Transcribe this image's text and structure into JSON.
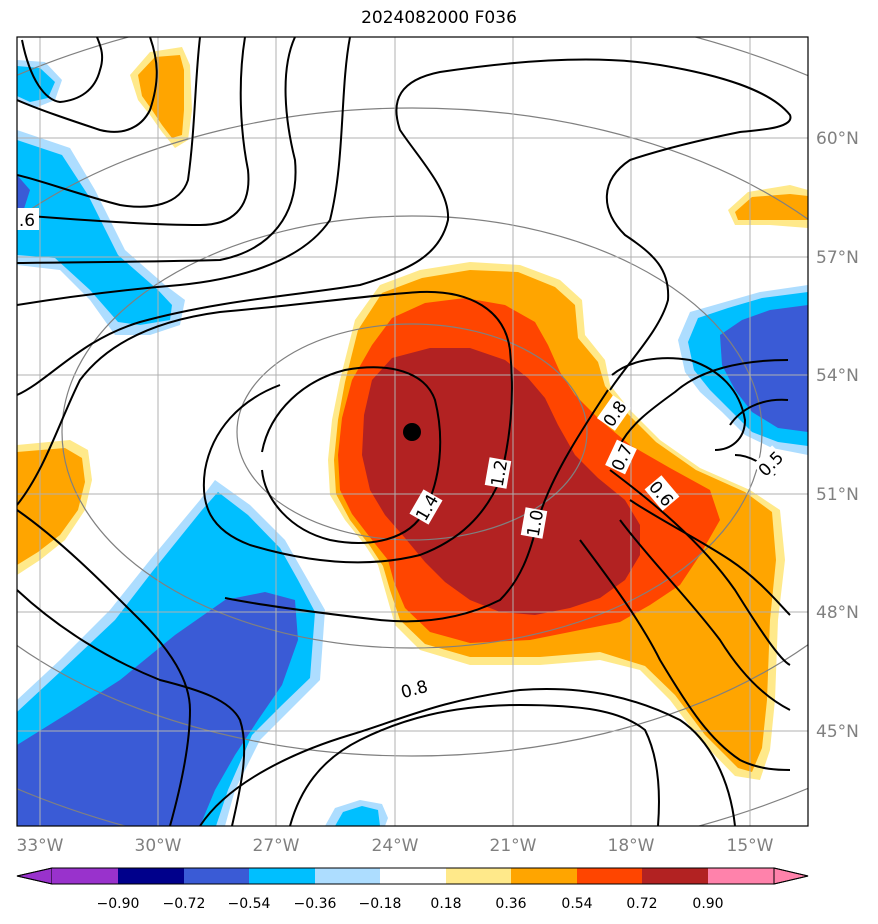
{
  "title": "2024082000 F036",
  "map": {
    "lon_labels": [
      "33°W",
      "30°W",
      "27°W",
      "24°W",
      "21°W",
      "18°W",
      "15°W"
    ],
    "lat_labels": [
      "60°N",
      "57°N",
      "54°N",
      "51°N",
      "48°N",
      "45°N"
    ],
    "center_marker": {
      "label": "",
      "color": "#000000"
    },
    "contour_labels": [
      "1.4",
      "1.2",
      "1.0",
      "0.8",
      "0.7",
      "0.6",
      "0.5",
      "0.8",
      ".6"
    ]
  },
  "colorbar": {
    "ticks": [
      "−0.90",
      "−0.72",
      "−0.54",
      "−0.36",
      "−0.18",
      "0.18",
      "0.36",
      "0.54",
      "0.72",
      "0.90"
    ],
    "colors": [
      "#9932CC",
      "#00008B",
      "#3A5BD6",
      "#00BFFF",
      "#ADDDFF",
      "#FFFFFF",
      "#FFE98A",
      "#FFA500",
      "#FF4500",
      "#B22222",
      "#FF82AB"
    ]
  }
}
